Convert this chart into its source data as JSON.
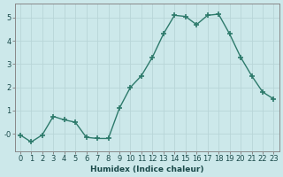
{
  "x": [
    0,
    1,
    2,
    3,
    4,
    5,
    6,
    7,
    8,
    9,
    10,
    11,
    12,
    13,
    14,
    15,
    16,
    17,
    18,
    19,
    20,
    21,
    22,
    23
  ],
  "y": [
    -0.05,
    -0.35,
    -0.05,
    0.75,
    0.6,
    0.5,
    -0.15,
    -0.2,
    -0.2,
    1.1,
    2.0,
    2.5,
    3.3,
    4.3,
    5.1,
    5.05,
    4.7,
    5.1,
    5.15,
    4.3,
    3.3,
    2.5,
    1.8,
    1.5
  ],
  "xlabel": "Humidex (Indice chaleur)",
  "xlim": [
    -0.5,
    23.5
  ],
  "ylim": [
    -0.75,
    5.6
  ],
  "yticks": [
    0,
    1,
    2,
    3,
    4,
    5
  ],
  "ytick_labels": [
    "-0",
    "1",
    "2",
    "3",
    "4",
    "5"
  ],
  "xticks": [
    0,
    1,
    2,
    3,
    4,
    5,
    6,
    7,
    8,
    9,
    10,
    11,
    12,
    13,
    14,
    15,
    16,
    17,
    18,
    19,
    20,
    21,
    22,
    23
  ],
  "line_color": "#2d7a6b",
  "marker": "+",
  "marker_size": 4,
  "marker_lw": 1.2,
  "line_width": 1.0,
  "bg_color": "#cce8ea",
  "grid_color": "#b8d5d8",
  "spine_color": "#888888",
  "xlabel_fontsize": 6.5,
  "tick_fontsize": 6
}
